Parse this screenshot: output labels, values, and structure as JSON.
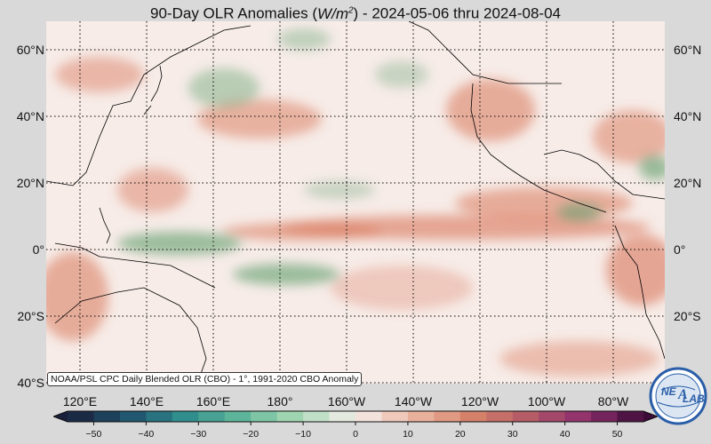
{
  "title": "90-Day OLR Anomalies (W/m2) - 2024-05-06 thru 2024-08-04",
  "title_parts": {
    "prefix": "90-Day OLR Anomalies (",
    "unit_base": "W/m",
    "unit_exp": "2",
    "suffix": ") - 2024-05-06 thru 2024-08-04"
  },
  "map": {
    "lat_labels": [
      "60°N",
      "40°N",
      "20°N",
      "0°",
      "20°S",
      "40°S"
    ],
    "lon_labels": [
      "120°E",
      "140°E",
      "160°E",
      "180°",
      "160°W",
      "140°W",
      "120°W",
      "100°W",
      "80°W"
    ],
    "lat_range": [
      -40,
      67
    ],
    "lon_range": [
      110,
      295
    ],
    "credit": "NOAA/PSL CPC Daily Blended OLR (CBO) - 1°, 1991-2020 CBO Anomaly",
    "colors": {
      "background": "#f7ece8",
      "positive": "#d9775a",
      "negative": "#5d9d6a",
      "coast": "#000000",
      "grid": "#000000"
    }
  },
  "colorbar": {
    "ticks": [
      "−50",
      "−40",
      "−30",
      "−20",
      "−10",
      "0",
      "10",
      "20",
      "30",
      "40",
      "50"
    ],
    "range": [
      -55,
      55
    ],
    "colors": [
      "#1a1f3a",
      "#1f4f6b",
      "#2e8c8c",
      "#5fb79a",
      "#a9d8b4",
      "#f5eeec",
      "#ecb8a4",
      "#d7836a",
      "#b35a66",
      "#8e2e6e",
      "#3d0b38"
    ]
  },
  "logo": {
    "text_top": "NE",
    "text_bottom": "LAB",
    "text_italic": "A",
    "ring_color": "#2a5ea8"
  }
}
